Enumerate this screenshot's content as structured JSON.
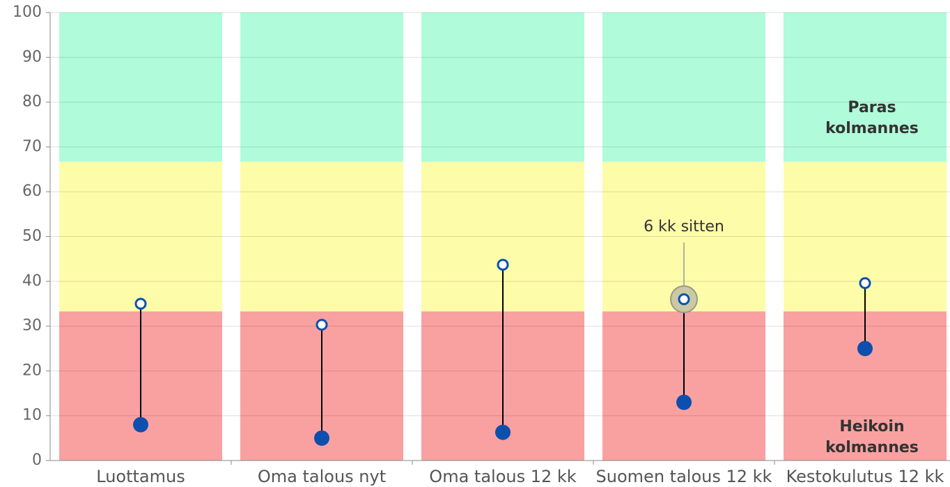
{
  "chart_data": {
    "type": "dumbbell",
    "categories": [
      "Luottamus",
      "Oma talous nyt",
      "Oma talous 12 kk",
      "Suomen talous 12 kk",
      "Kestokulutus 12 kk"
    ],
    "series": [
      {
        "color": "#0d4fae",
        "marker": "filled",
        "values": [
          8,
          5,
          6.3,
          13,
          25
        ]
      },
      {
        "color": "#0d4fae",
        "marker": "open",
        "values": [
          35,
          30.3,
          43.7,
          36,
          39.6
        ]
      }
    ],
    "zones": [
      {
        "from": 0,
        "to": 33.3,
        "color": "#f9a1a0",
        "label": [
          "Heikoin",
          "kolmannes"
        ]
      },
      {
        "from": 33.3,
        "to": 66.7,
        "color": "#fdfca9"
      },
      {
        "from": 66.7,
        "to": 100,
        "color": "#b0fbd9",
        "label": [
          "Paras",
          "kolmannes"
        ]
      }
    ],
    "annotation": {
      "text": "6 kk sitten",
      "series": 1,
      "index": 3
    },
    "ylim": [
      0,
      100
    ],
    "yticks": [
      0,
      10,
      20,
      30,
      40,
      50,
      60,
      70,
      80,
      90,
      100
    ],
    "grid": true
  }
}
